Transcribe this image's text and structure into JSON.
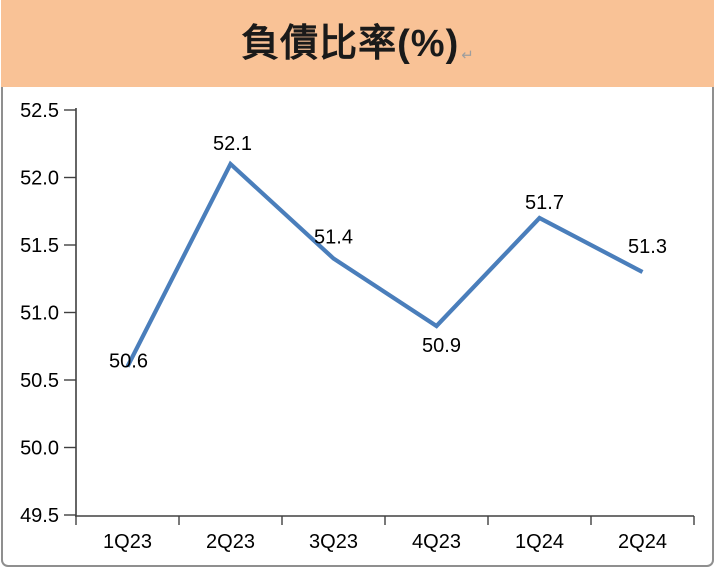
{
  "banner": {
    "title": "負債比率(%)",
    "return_mark": "↵",
    "bg_color": "#f9c296",
    "text_color": "#1a1a1a"
  },
  "frame": {
    "border_color": "#8f8f8f",
    "background": "#ffffff"
  },
  "chart_data": {
    "type": "line",
    "title": "負債比率(%)",
    "xlabel": "",
    "ylabel": "",
    "categories": [
      "1Q23",
      "2Q23",
      "3Q23",
      "4Q23",
      "1Q24",
      "2Q24"
    ],
    "values": [
      50.6,
      52.1,
      51.4,
      50.9,
      51.7,
      51.3
    ],
    "data_labels": [
      "50.6",
      "52.1",
      "51.4",
      "50.9",
      "51.7",
      "51.3"
    ],
    "ylim": [
      49.5,
      52.5
    ],
    "ytick_step": 0.5,
    "ytick_labels": [
      "49.5",
      "50.0",
      "50.5",
      "51.0",
      "51.5",
      "52.0",
      "52.5"
    ],
    "grid": false,
    "legend": false,
    "line_color": "#4a7ebb",
    "axis_color": "#404040",
    "tick_label_color": "#000000",
    "data_label_color": "#000000"
  }
}
